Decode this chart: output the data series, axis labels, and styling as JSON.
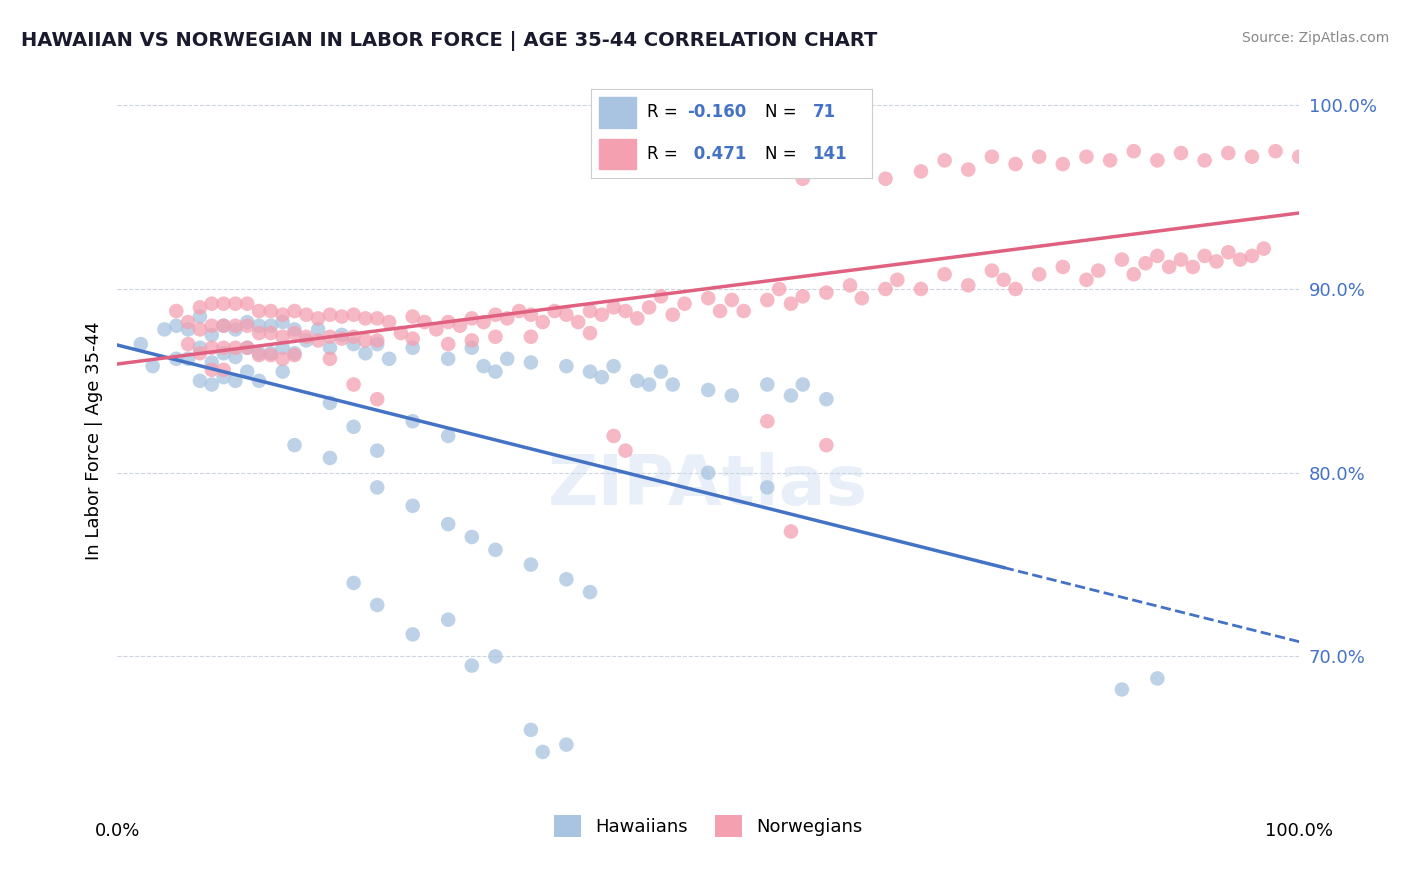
{
  "title": "HAWAIIAN VS NORWEGIAN IN LABOR FORCE | AGE 35-44 CORRELATION CHART",
  "source": "Source: ZipAtlas.com",
  "ylabel": "In Labor Force | Age 35-44",
  "xlim": [
    0.0,
    1.0
  ],
  "ylim": [
    0.615,
    1.02
  ],
  "yticks": [
    0.7,
    0.8,
    0.9,
    1.0
  ],
  "ytick_labels": [
    "70.0%",
    "80.0%",
    "90.0%",
    "100.0%"
  ],
  "hawaii_color": "#a8c4e0",
  "norway_color": "#f4a0b0",
  "hawaii_line_color": "#4472c4",
  "norway_line_color": "#e06080",
  "background_color": "#ffffff",
  "hawaii_scatter": [
    [
      0.02,
      0.87
    ],
    [
      0.03,
      0.858
    ],
    [
      0.04,
      0.878
    ],
    [
      0.05,
      0.88
    ],
    [
      0.05,
      0.862
    ],
    [
      0.06,
      0.878
    ],
    [
      0.06,
      0.862
    ],
    [
      0.07,
      0.885
    ],
    [
      0.07,
      0.868
    ],
    [
      0.07,
      0.85
    ],
    [
      0.08,
      0.875
    ],
    [
      0.08,
      0.86
    ],
    [
      0.08,
      0.848
    ],
    [
      0.09,
      0.88
    ],
    [
      0.09,
      0.865
    ],
    [
      0.09,
      0.852
    ],
    [
      0.1,
      0.878
    ],
    [
      0.1,
      0.863
    ],
    [
      0.1,
      0.85
    ],
    [
      0.11,
      0.882
    ],
    [
      0.11,
      0.868
    ],
    [
      0.11,
      0.855
    ],
    [
      0.12,
      0.88
    ],
    [
      0.12,
      0.865
    ],
    [
      0.12,
      0.85
    ],
    [
      0.13,
      0.88
    ],
    [
      0.13,
      0.865
    ],
    [
      0.14,
      0.882
    ],
    [
      0.14,
      0.868
    ],
    [
      0.14,
      0.855
    ],
    [
      0.15,
      0.878
    ],
    [
      0.15,
      0.865
    ],
    [
      0.16,
      0.872
    ],
    [
      0.17,
      0.878
    ],
    [
      0.18,
      0.868
    ],
    [
      0.19,
      0.875
    ],
    [
      0.2,
      0.87
    ],
    [
      0.21,
      0.865
    ],
    [
      0.22,
      0.87
    ],
    [
      0.23,
      0.862
    ],
    [
      0.25,
      0.868
    ],
    [
      0.28,
      0.862
    ],
    [
      0.3,
      0.868
    ],
    [
      0.31,
      0.858
    ],
    [
      0.32,
      0.855
    ],
    [
      0.33,
      0.862
    ],
    [
      0.35,
      0.86
    ],
    [
      0.38,
      0.858
    ],
    [
      0.4,
      0.855
    ],
    [
      0.41,
      0.852
    ],
    [
      0.42,
      0.858
    ],
    [
      0.44,
      0.85
    ],
    [
      0.45,
      0.848
    ],
    [
      0.46,
      0.855
    ],
    [
      0.47,
      0.848
    ],
    [
      0.5,
      0.845
    ],
    [
      0.52,
      0.842
    ],
    [
      0.55,
      0.848
    ],
    [
      0.57,
      0.842
    ],
    [
      0.58,
      0.848
    ],
    [
      0.6,
      0.84
    ],
    [
      0.18,
      0.838
    ],
    [
      0.2,
      0.825
    ],
    [
      0.22,
      0.812
    ],
    [
      0.25,
      0.828
    ],
    [
      0.28,
      0.82
    ],
    [
      0.15,
      0.815
    ],
    [
      0.18,
      0.808
    ],
    [
      0.22,
      0.792
    ],
    [
      0.25,
      0.782
    ],
    [
      0.28,
      0.772
    ],
    [
      0.3,
      0.765
    ],
    [
      0.32,
      0.758
    ],
    [
      0.35,
      0.75
    ],
    [
      0.38,
      0.742
    ],
    [
      0.4,
      0.735
    ],
    [
      0.5,
      0.8
    ],
    [
      0.55,
      0.792
    ],
    [
      0.2,
      0.74
    ],
    [
      0.22,
      0.728
    ],
    [
      0.25,
      0.712
    ],
    [
      0.28,
      0.72
    ],
    [
      0.3,
      0.695
    ],
    [
      0.32,
      0.7
    ],
    [
      0.35,
      0.66
    ],
    [
      0.36,
      0.648
    ],
    [
      0.38,
      0.652
    ],
    [
      0.85,
      0.682
    ],
    [
      0.88,
      0.688
    ]
  ],
  "norway_scatter": [
    [
      0.05,
      0.888
    ],
    [
      0.06,
      0.882
    ],
    [
      0.06,
      0.87
    ],
    [
      0.07,
      0.89
    ],
    [
      0.07,
      0.878
    ],
    [
      0.07,
      0.865
    ],
    [
      0.08,
      0.892
    ],
    [
      0.08,
      0.88
    ],
    [
      0.08,
      0.868
    ],
    [
      0.08,
      0.856
    ],
    [
      0.09,
      0.892
    ],
    [
      0.09,
      0.88
    ],
    [
      0.09,
      0.868
    ],
    [
      0.09,
      0.856
    ],
    [
      0.1,
      0.892
    ],
    [
      0.1,
      0.88
    ],
    [
      0.1,
      0.868
    ],
    [
      0.11,
      0.892
    ],
    [
      0.11,
      0.88
    ],
    [
      0.11,
      0.868
    ],
    [
      0.12,
      0.888
    ],
    [
      0.12,
      0.876
    ],
    [
      0.12,
      0.864
    ],
    [
      0.13,
      0.888
    ],
    [
      0.13,
      0.876
    ],
    [
      0.13,
      0.864
    ],
    [
      0.14,
      0.886
    ],
    [
      0.14,
      0.874
    ],
    [
      0.14,
      0.862
    ],
    [
      0.15,
      0.888
    ],
    [
      0.15,
      0.876
    ],
    [
      0.15,
      0.864
    ],
    [
      0.16,
      0.886
    ],
    [
      0.16,
      0.874
    ],
    [
      0.17,
      0.884
    ],
    [
      0.17,
      0.872
    ],
    [
      0.18,
      0.886
    ],
    [
      0.18,
      0.874
    ],
    [
      0.18,
      0.862
    ],
    [
      0.19,
      0.885
    ],
    [
      0.19,
      0.873
    ],
    [
      0.2,
      0.886
    ],
    [
      0.2,
      0.874
    ],
    [
      0.21,
      0.884
    ],
    [
      0.21,
      0.872
    ],
    [
      0.22,
      0.884
    ],
    [
      0.22,
      0.872
    ],
    [
      0.23,
      0.882
    ],
    [
      0.24,
      0.876
    ],
    [
      0.25,
      0.885
    ],
    [
      0.25,
      0.873
    ],
    [
      0.26,
      0.882
    ],
    [
      0.27,
      0.878
    ],
    [
      0.28,
      0.882
    ],
    [
      0.28,
      0.87
    ],
    [
      0.29,
      0.88
    ],
    [
      0.3,
      0.884
    ],
    [
      0.3,
      0.872
    ],
    [
      0.31,
      0.882
    ],
    [
      0.32,
      0.886
    ],
    [
      0.32,
      0.874
    ],
    [
      0.33,
      0.884
    ],
    [
      0.34,
      0.888
    ],
    [
      0.35,
      0.886
    ],
    [
      0.35,
      0.874
    ],
    [
      0.36,
      0.882
    ],
    [
      0.37,
      0.888
    ],
    [
      0.38,
      0.886
    ],
    [
      0.39,
      0.882
    ],
    [
      0.4,
      0.888
    ],
    [
      0.4,
      0.876
    ],
    [
      0.41,
      0.886
    ],
    [
      0.42,
      0.89
    ],
    [
      0.43,
      0.888
    ],
    [
      0.44,
      0.884
    ],
    [
      0.45,
      0.89
    ],
    [
      0.46,
      0.896
    ],
    [
      0.47,
      0.886
    ],
    [
      0.48,
      0.892
    ],
    [
      0.5,
      0.895
    ],
    [
      0.51,
      0.888
    ],
    [
      0.52,
      0.894
    ],
    [
      0.53,
      0.888
    ],
    [
      0.55,
      0.894
    ],
    [
      0.56,
      0.9
    ],
    [
      0.57,
      0.892
    ],
    [
      0.58,
      0.896
    ],
    [
      0.6,
      0.898
    ],
    [
      0.62,
      0.902
    ],
    [
      0.63,
      0.895
    ],
    [
      0.65,
      0.9
    ],
    [
      0.66,
      0.905
    ],
    [
      0.68,
      0.9
    ],
    [
      0.7,
      0.908
    ],
    [
      0.72,
      0.902
    ],
    [
      0.74,
      0.91
    ],
    [
      0.75,
      0.905
    ],
    [
      0.76,
      0.9
    ],
    [
      0.78,
      0.908
    ],
    [
      0.8,
      0.912
    ],
    [
      0.82,
      0.905
    ],
    [
      0.83,
      0.91
    ],
    [
      0.85,
      0.916
    ],
    [
      0.86,
      0.908
    ],
    [
      0.87,
      0.914
    ],
    [
      0.88,
      0.918
    ],
    [
      0.89,
      0.912
    ],
    [
      0.9,
      0.916
    ],
    [
      0.91,
      0.912
    ],
    [
      0.92,
      0.918
    ],
    [
      0.93,
      0.915
    ],
    [
      0.94,
      0.92
    ],
    [
      0.95,
      0.916
    ],
    [
      0.96,
      0.918
    ],
    [
      0.97,
      0.922
    ],
    [
      0.2,
      0.848
    ],
    [
      0.22,
      0.84
    ],
    [
      0.42,
      0.82
    ],
    [
      0.43,
      0.812
    ],
    [
      0.55,
      0.828
    ],
    [
      0.57,
      0.768
    ],
    [
      0.6,
      0.815
    ],
    [
      0.58,
      0.96
    ],
    [
      0.62,
      0.966
    ],
    [
      0.65,
      0.96
    ],
    [
      0.68,
      0.964
    ],
    [
      0.7,
      0.97
    ],
    [
      0.72,
      0.965
    ],
    [
      0.74,
      0.972
    ],
    [
      0.76,
      0.968
    ],
    [
      0.78,
      0.972
    ],
    [
      0.8,
      0.968
    ],
    [
      0.82,
      0.972
    ],
    [
      0.84,
      0.97
    ],
    [
      0.86,
      0.975
    ],
    [
      0.88,
      0.97
    ],
    [
      0.9,
      0.974
    ],
    [
      0.92,
      0.97
    ],
    [
      0.94,
      0.974
    ],
    [
      0.96,
      0.972
    ],
    [
      0.98,
      0.975
    ],
    [
      1.0,
      0.972
    ]
  ]
}
